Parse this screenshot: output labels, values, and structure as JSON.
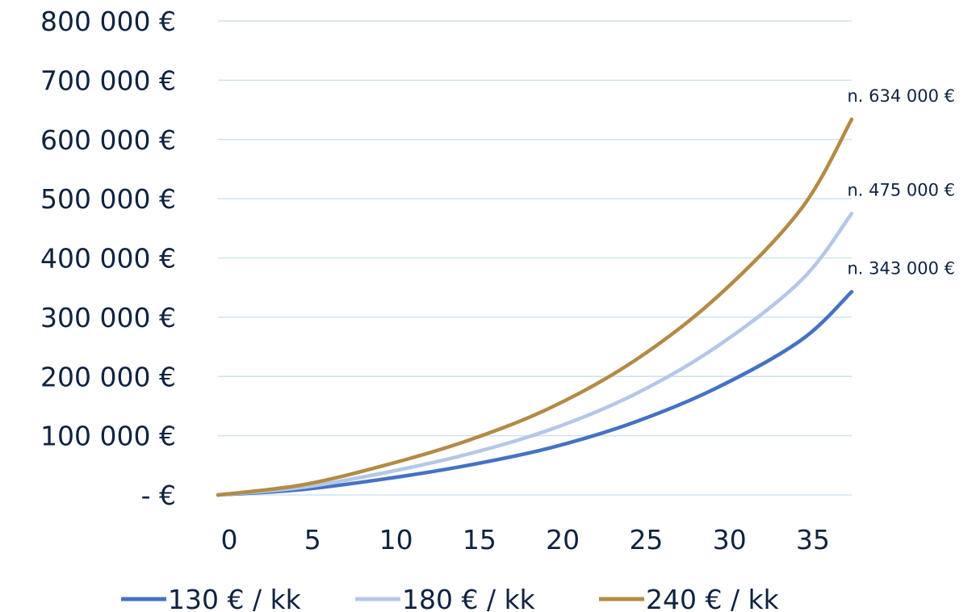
{
  "chart_data": {
    "type": "line",
    "x": [
      0,
      5,
      10,
      15,
      20,
      25,
      30,
      35,
      38
    ],
    "x_ticks": [
      0,
      5,
      10,
      15,
      20,
      25,
      30,
      35
    ],
    "x_tick_labels": [
      "0",
      "5",
      "10",
      "15",
      "20",
      "25",
      "30",
      "35"
    ],
    "xlim": [
      0,
      38
    ],
    "ylim": [
      0,
      800000
    ],
    "y_ticks": [
      0,
      100000,
      200000,
      300000,
      400000,
      500000,
      600000,
      700000,
      800000
    ],
    "y_tick_labels": [
      "-   €",
      "100 000 €",
      "200 000 €",
      "300 000 €",
      "400 000 €",
      "500 000 €",
      "600 000 €",
      "700 000 €",
      "800 000 €"
    ],
    "grid": true,
    "legend_position": "bottom",
    "series": [
      {
        "name": "130 € / kk",
        "color": "#4472c4",
        "values": [
          0,
          9000,
          27000,
          50000,
          80000,
          123000,
          182000,
          262000,
          343000
        ],
        "end_label": "n. 343 000 €"
      },
      {
        "name": "180 € / kk",
        "color": "#b4c7e7",
        "values": [
          0,
          12500,
          37500,
          69000,
          111000,
          170000,
          252000,
          363000,
          475000
        ],
        "end_label": "n. 475 000 €"
      },
      {
        "name": "240 € / kk",
        "color": "#b38b46",
        "values": [
          0,
          16700,
          50000,
          92000,
          148000,
          227000,
          336000,
          484000,
          634000
        ],
        "end_label": "n. 634 000 €"
      }
    ]
  }
}
